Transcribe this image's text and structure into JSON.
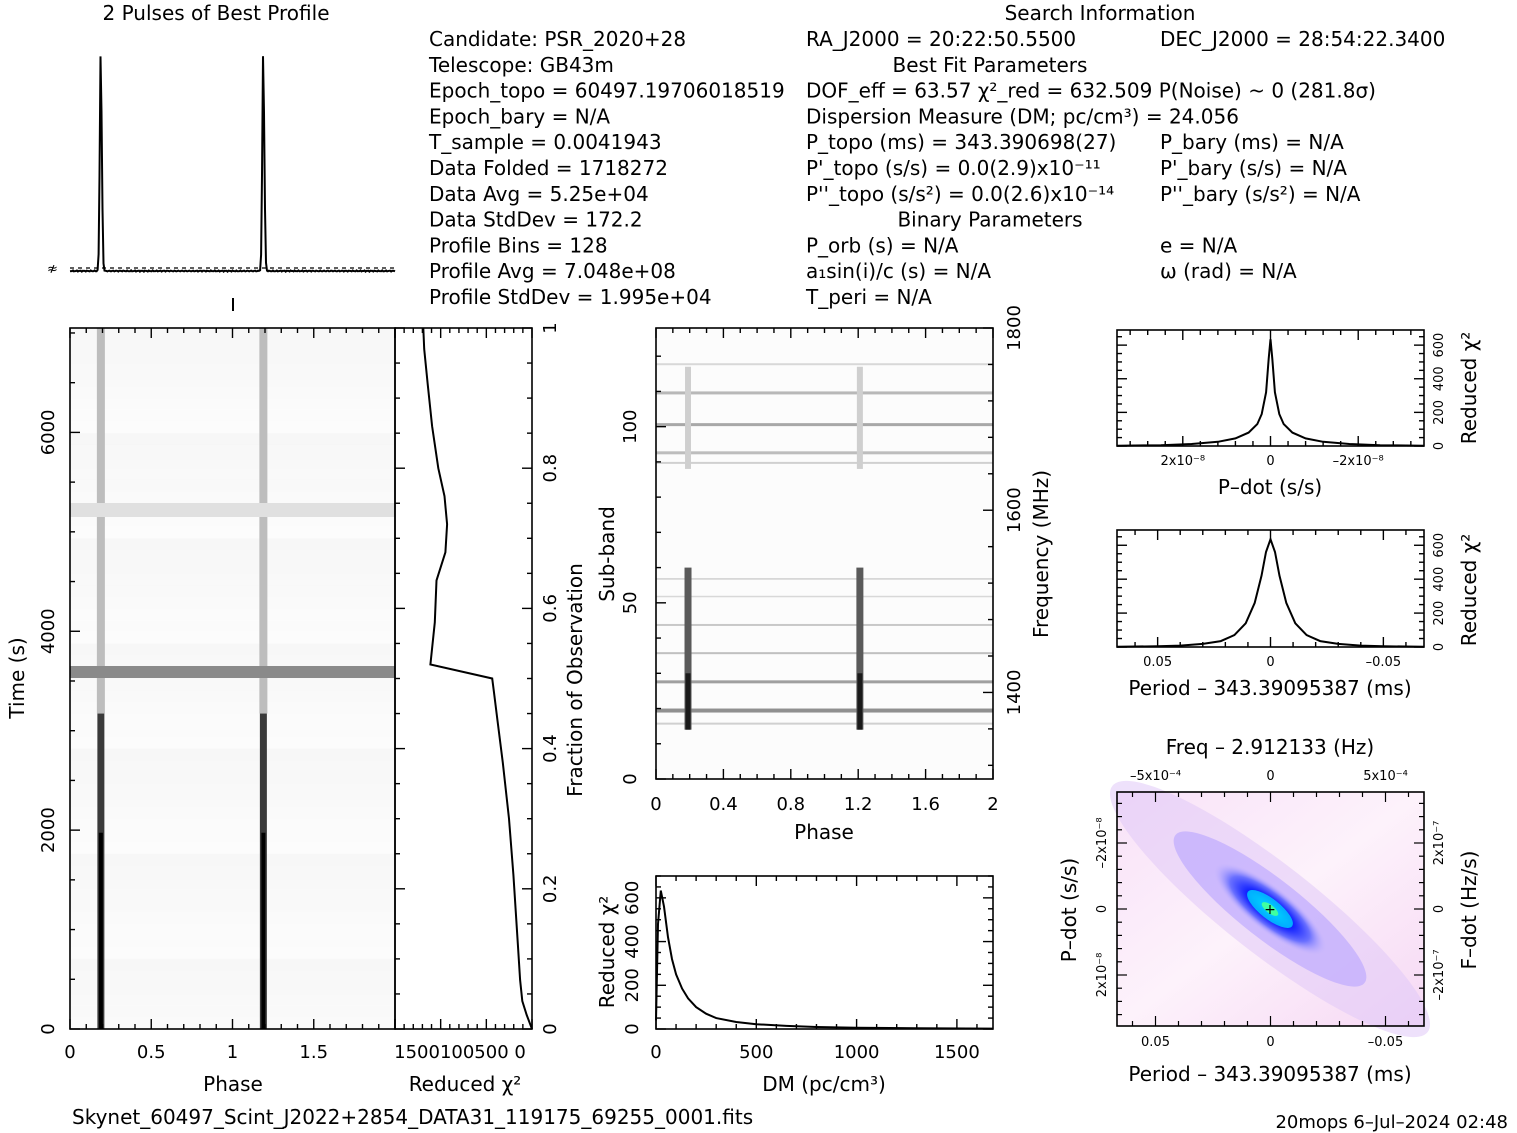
{
  "chart_data": {
    "type": "prepfold_diagnostic",
    "profile_panel": {
      "title": "2 Pulses of Best Profile",
      "pulse_phases": [
        0.19,
        1.19
      ]
    },
    "info": {
      "header": "Search Information",
      "col1": [
        "Candidate:  PSR_2020+28",
        "Telescope:  GB43m",
        "Epoch_topo = 60497.19706018519",
        "Epoch_bary = N/A",
        "T_sample         =  0.0041943",
        "Data Folded    =  1718272",
        "Data Avg        =  5.25e+04",
        "Data StdDev    =  172.2",
        "Profile Bins     =  128",
        "Profile Avg      =  7.048e+08",
        "Profile StdDev =  1.995e+04"
      ],
      "col2": [
        "RA_J2000 = 20:22:50.5500",
        "Best Fit Parameters",
        "DOF_eff = 63.57  χ²_red = 632.509  P(Noise) ~ 0   (281.8σ)",
        "Dispersion Measure (DM; pc/cm³) = 24.056",
        "P_topo (ms) =  343.390698(27)",
        "P'_topo (s/s) = 0.0(2.9)x10⁻¹¹",
        "P''_topo (s/s²) = 0.0(2.6)x10⁻¹⁴",
        "Binary Parameters",
        "P_orb (s) = N/A",
        "a₁sin(i)/c (s) = N/A",
        "T_peri = N/A"
      ],
      "col3": [
        "DEC_J2000 = 28:54:22.3400",
        "P_bary (ms) = N/A",
        "P'_bary (s/s) = N/A",
        "P''_bary (s/s²) = N/A",
        "e = N/A",
        "ω (rad) = N/A"
      ]
    },
    "time_phase": {
      "xlabel": "Phase",
      "ylabel": "Time (s)",
      "xticks": [
        "0",
        "0.5",
        "1",
        "1.5"
      ],
      "yticks": [
        "0",
        "2000",
        "4000",
        "6000"
      ],
      "xlim": [
        0,
        2
      ],
      "ylim": [
        0,
        7050
      ]
    },
    "redchi_time": {
      "xlabel": "Reduced χ²",
      "ylabel": "Fraction of Observation",
      "xtick_labels": "1500100500 0",
      "yticks": [
        "0",
        "0.2",
        "0.4",
        "0.6",
        "0.8",
        "1"
      ],
      "xlim": [
        1550,
        0
      ],
      "points": [
        [
          0,
          0
        ],
        [
          60,
          0.02
        ],
        [
          110,
          0.04
        ],
        [
          135,
          0.07
        ],
        [
          160,
          0.12
        ],
        [
          210,
          0.22
        ],
        [
          260,
          0.3
        ],
        [
          330,
          0.38
        ],
        [
          390,
          0.44
        ],
        [
          430,
          0.48
        ],
        [
          450,
          0.5
        ],
        [
          1150,
          0.52
        ],
        [
          1100,
          0.58
        ],
        [
          1080,
          0.64
        ],
        [
          980,
          0.68
        ],
        [
          960,
          0.72
        ],
        [
          990,
          0.76
        ],
        [
          1060,
          0.8
        ],
        [
          1130,
          0.86
        ],
        [
          1180,
          0.92
        ],
        [
          1220,
          0.97
        ],
        [
          1230,
          1.0
        ]
      ]
    },
    "subband_phase": {
      "xlabel": "Phase",
      "ylabel": "Sub-band",
      "y2label": "Frequency (MHz)",
      "xticks": [
        "0",
        "0.4",
        "0.8",
        "1.2",
        "1.6",
        "2"
      ],
      "yticks": [
        "0",
        "50",
        "100"
      ],
      "y2ticks": [
        "1400",
        "1600",
        "1800"
      ],
      "xlim": [
        0,
        2
      ],
      "ylim": [
        0,
        128
      ],
      "y2lim": [
        1305,
        1800
      ]
    },
    "dm_chi": {
      "xlabel": "DM (pc/cm³)",
      "ylabel": "Reduced χ²",
      "xticks": [
        "0",
        "500",
        "1000",
        "1500"
      ],
      "yticks": [
        "0",
        "200",
        "400",
        "600"
      ],
      "xlim": [
        0,
        1680
      ],
      "ylim": [
        0,
        700
      ],
      "points": [
        [
          0,
          40
        ],
        [
          10,
          480
        ],
        [
          24,
          633
        ],
        [
          40,
          560
        ],
        [
          60,
          420
        ],
        [
          80,
          320
        ],
        [
          100,
          250
        ],
        [
          130,
          185
        ],
        [
          160,
          140
        ],
        [
          200,
          100
        ],
        [
          250,
          70
        ],
        [
          300,
          50
        ],
        [
          400,
          32
        ],
        [
          500,
          22
        ],
        [
          650,
          14
        ],
        [
          800,
          9
        ],
        [
          1000,
          6
        ],
        [
          1300,
          3
        ],
        [
          1680,
          2
        ]
      ]
    },
    "pdot_chi": {
      "xlabel": "P–dot (s/s)",
      "ylabel": "Reduced χ²",
      "xticks": [
        "2x10⁻⁸",
        "0",
        "–2x10⁻⁸"
      ],
      "yticks": [
        "0",
        "200",
        "400",
        "600"
      ],
      "xlim": [
        3.5e-08,
        -3.5e-08
      ],
      "ylim": [
        0,
        690
      ],
      "points": [
        [
          3.5e-08,
          2
        ],
        [
          2.5e-08,
          5
        ],
        [
          1.8e-08,
          12
        ],
        [
          1.2e-08,
          25
        ],
        [
          8e-09,
          45
        ],
        [
          5e-09,
          80
        ],
        [
          3e-09,
          130
        ],
        [
          2e-09,
          190
        ],
        [
          1e-09,
          320
        ],
        [
          4e-10,
          520
        ],
        [
          0,
          635
        ],
        [
          -4e-10,
          520
        ],
        [
          -1e-09,
          320
        ],
        [
          -2e-09,
          190
        ],
        [
          -3e-09,
          130
        ],
        [
          -5e-09,
          80
        ],
        [
          -8e-09,
          45
        ],
        [
          -1.2e-08,
          25
        ],
        [
          -1.8e-08,
          12
        ],
        [
          -2.5e-08,
          5
        ],
        [
          -3.5e-08,
          2
        ]
      ]
    },
    "period_chi": {
      "xlabel": "Period – 343.39095387 (ms)",
      "ylabel": "Reduced χ²",
      "xticks": [
        "0.05",
        "0",
        "–0.05"
      ],
      "yticks": [
        "0",
        "200",
        "400",
        "600"
      ],
      "xlim": [
        0.068,
        -0.068
      ],
      "ylim": [
        0,
        690
      ],
      "points": [
        [
          0.068,
          2
        ],
        [
          0.05,
          4
        ],
        [
          0.04,
          8
        ],
        [
          0.03,
          18
        ],
        [
          0.022,
          35
        ],
        [
          0.016,
          70
        ],
        [
          0.011,
          140
        ],
        [
          0.007,
          260
        ],
        [
          0.004,
          420
        ],
        [
          0.002,
          560
        ],
        [
          0,
          635
        ],
        [
          -0.002,
          560
        ],
        [
          -0.004,
          420
        ],
        [
          -0.007,
          260
        ],
        [
          -0.011,
          140
        ],
        [
          -0.016,
          70
        ],
        [
          -0.022,
          35
        ],
        [
          -0.03,
          18
        ],
        [
          -0.04,
          8
        ],
        [
          -0.05,
          4
        ],
        [
          -0.068,
          2
        ]
      ]
    },
    "ppdot": {
      "title": "Freq – 2.912133 (Hz)",
      "xlabel": "Period – 343.39095387 (ms)",
      "ylabel": "P–dot (s/s)",
      "y2label": "F–dot (Hz/s)",
      "xticks": [
        "0.05",
        "0",
        "–0.05"
      ],
      "x2ticks": [
        "–5x10⁻⁴",
        "0",
        "5x10⁻⁴"
      ],
      "yticks": [
        "2x10⁻⁸",
        "0",
        "–2x10⁻⁸"
      ],
      "y2ticks": [
        "–2x10⁻⁷",
        "0",
        "2x10⁻⁷"
      ]
    },
    "footer": {
      "filename": "Skynet_60497_Scint_J2022+2854_DATA31_119175_69255_0001.fits",
      "stamp": "20mops   6–Jul–2024 02:48"
    }
  }
}
